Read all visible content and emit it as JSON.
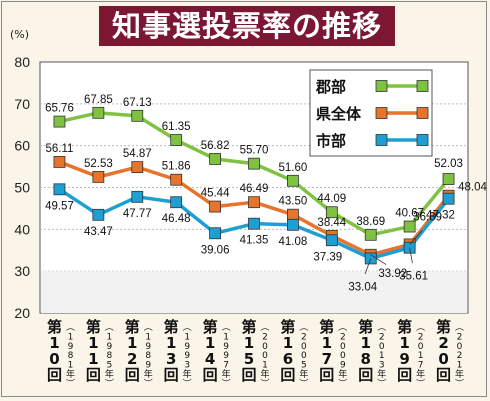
{
  "title": "知事選投票率の推移",
  "chart_data": {
    "type": "line",
    "unit": "(%)",
    "ylim": [
      20,
      80
    ],
    "yticks": [
      "20",
      "30",
      "40",
      "50",
      "60",
      "70",
      "80"
    ],
    "categories": [
      {
        "ordinal": "第10回",
        "year": "(1981年)"
      },
      {
        "ordinal": "第11回",
        "year": "(1985年)"
      },
      {
        "ordinal": "第12回",
        "year": "(1989年)"
      },
      {
        "ordinal": "第13回",
        "year": "(1993年)"
      },
      {
        "ordinal": "第14回",
        "year": "(1997年)"
      },
      {
        "ordinal": "第15回",
        "year": "(2001年)"
      },
      {
        "ordinal": "第16回",
        "year": "(2005年)"
      },
      {
        "ordinal": "第17回",
        "year": "(2009年)"
      },
      {
        "ordinal": "第18回",
        "year": "(2013年)"
      },
      {
        "ordinal": "第19回",
        "year": "(2017年)"
      },
      {
        "ordinal": "第20回",
        "year": "(2021年)"
      }
    ],
    "series": [
      {
        "name": "郡部",
        "color": "#7fc241",
        "values": [
          65.76,
          67.85,
          67.13,
          61.35,
          56.82,
          55.7,
          51.6,
          44.09,
          38.69,
          40.67,
          52.03
        ]
      },
      {
        "name": "県全体",
        "color": "#e8732a",
        "values": [
          56.11,
          52.53,
          54.87,
          51.86,
          45.44,
          46.49,
          43.5,
          38.44,
          33.92,
          36.39,
          48.04
        ]
      },
      {
        "name": "市部",
        "color": "#1d9fd3",
        "values": [
          49.57,
          43.47,
          47.77,
          46.48,
          39.06,
          41.35,
          41.08,
          37.39,
          33.04,
          35.61,
          47.32
        ]
      }
    ],
    "grid": true,
    "legend_position": "top-right"
  }
}
